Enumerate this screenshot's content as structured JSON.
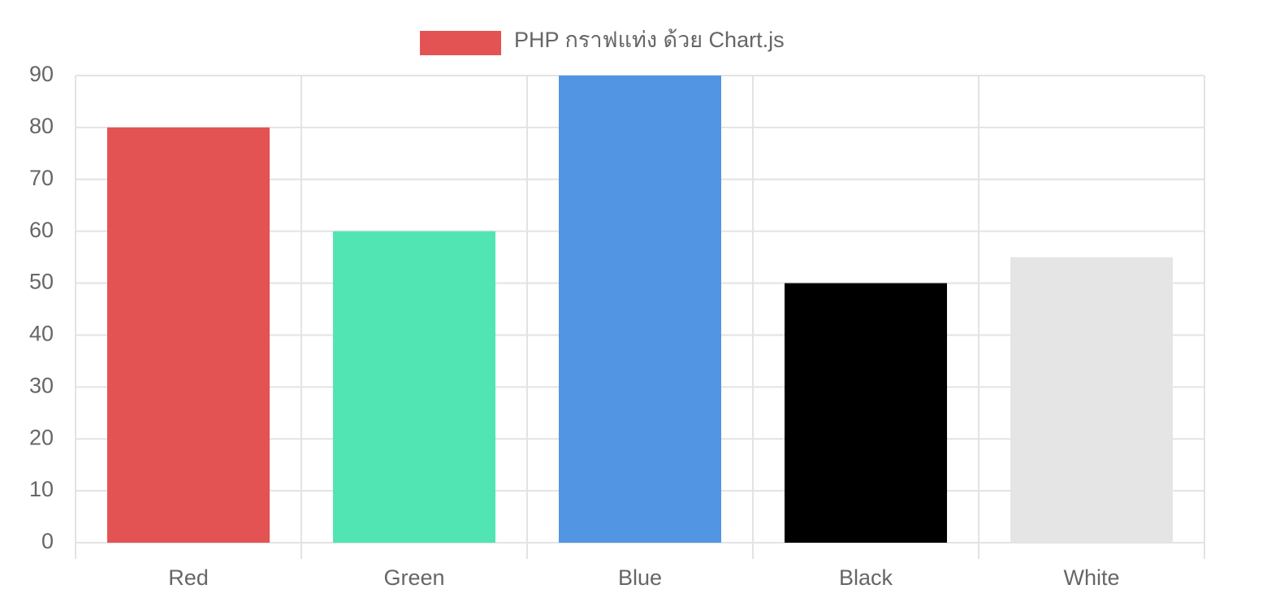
{
  "chart_data": {
    "type": "bar",
    "categories": [
      "Red",
      "Green",
      "Blue",
      "Black",
      "White"
    ],
    "series": [
      {
        "name": "PHP กราฟแท่ง ด้วย Chart.js",
        "colors": [
          "#e35353",
          "#51e5b3",
          "#5295e3",
          "#000000",
          "#e5e5e5"
        ],
        "values": [
          80,
          60,
          90,
          50,
          55
        ]
      }
    ],
    "ylim": [
      0,
      90
    ],
    "yticks": [
      0,
      10,
      20,
      30,
      40,
      50,
      60,
      70,
      80,
      90
    ],
    "grid": true,
    "legend": "top"
  }
}
